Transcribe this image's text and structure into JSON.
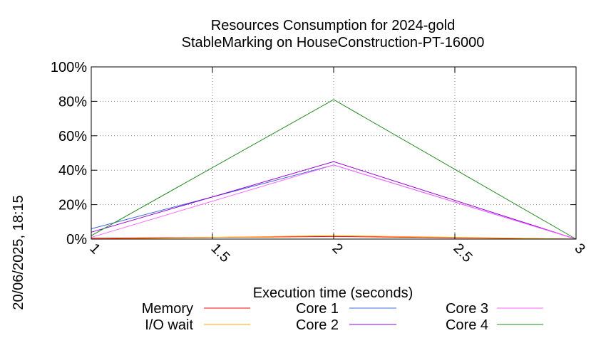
{
  "chart_data": {
    "type": "line",
    "title": [
      "Resources Consumption for 2024-gold",
      "StableMarking on HouseConstruction-PT-16000"
    ],
    "xlabel": "Execution time (seconds)",
    "ylabel": "",
    "side_label": "20/06/2025, 18:15",
    "xlim": [
      1,
      3
    ],
    "ylim": [
      0,
      100
    ],
    "x_ticks": [
      "1",
      "1.5",
      "2",
      "2.5",
      "3"
    ],
    "x_tick_values": [
      1,
      1.5,
      2,
      2.5,
      3
    ],
    "y_ticks": [
      "0%",
      "20%",
      "40%",
      "60%",
      "80%",
      "100%"
    ],
    "y_tick_values": [
      0,
      20,
      40,
      60,
      80,
      100
    ],
    "grid": true,
    "legend_position": "bottom",
    "x": [
      1,
      2,
      3
    ],
    "series": [
      {
        "name": "Memory",
        "color": "#ff0000",
        "values": [
          0.5,
          1.5,
          0
        ]
      },
      {
        "name": "I/O wait",
        "color": "#ffa500",
        "values": [
          0,
          2,
          0
        ]
      },
      {
        "name": "Core 1",
        "color": "#4169e1",
        "values": [
          6,
          43,
          0
        ]
      },
      {
        "name": "Core 2",
        "color": "#9400d3",
        "values": [
          4,
          45,
          0
        ]
      },
      {
        "name": "Core 3",
        "color": "#ff66ff",
        "values": [
          1,
          43,
          0
        ]
      },
      {
        "name": "Core 4",
        "color": "#228b22",
        "values": [
          2,
          81,
          0
        ]
      }
    ]
  }
}
